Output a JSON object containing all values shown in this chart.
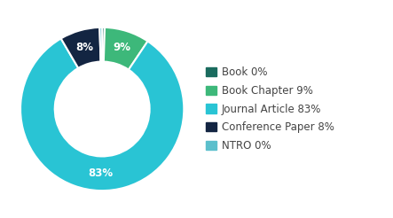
{
  "labels": [
    "Book",
    "Book Chapter",
    "Journal Article",
    "Conference Paper",
    "NTRO"
  ],
  "values": [
    0.5,
    9,
    83,
    8,
    0.5
  ],
  "colors": [
    "#1a6b5e",
    "#3db87a",
    "#29c4d4",
    "#132542",
    "#5bbfcc"
  ],
  "legend_labels": [
    "Book 0%",
    "Book Chapter 9%",
    "Journal Article 83%",
    "Conference Paper 8%",
    "NTRO 0%"
  ],
  "wedge_label_pcts": [
    "",
    "9%",
    "83%",
    "8%",
    ""
  ],
  "background_color": "#ffffff",
  "donut_width": 0.42,
  "label_fontsize": 8.5,
  "legend_fontsize": 8.5,
  "startangle": 90
}
